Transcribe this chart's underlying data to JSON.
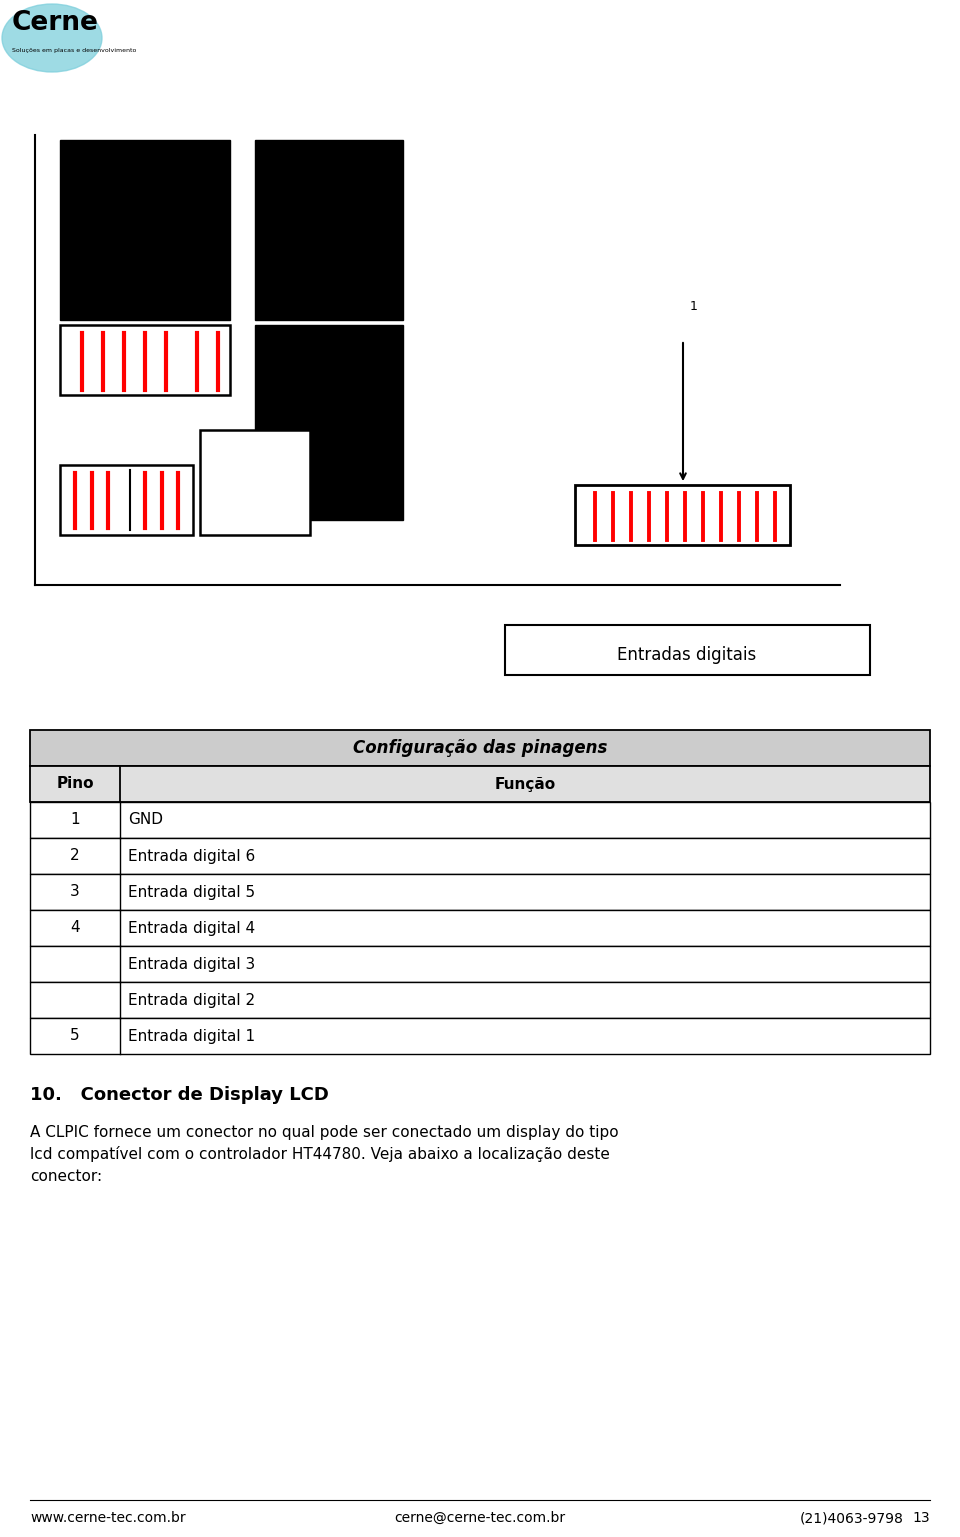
{
  "title": "Configuração das pinagens",
  "table_header": [
    "Pino",
    "Função"
  ],
  "table_rows": [
    [
      "1",
      "GND"
    ],
    [
      "2",
      "Entrada digital 6"
    ],
    [
      "3",
      "Entrada digital 5"
    ],
    [
      "4",
      "Entrada digital 4"
    ],
    [
      "",
      "Entrada digital 3"
    ],
    [
      "",
      "Entrada digital 2"
    ],
    [
      "5",
      "Entrada digital 1"
    ]
  ],
  "entradas_label": "Entradas digitais",
  "section_title": "10.   Conector de Display LCD",
  "body_text1": "A CLPIC fornece um conector no qual pode ser conectado um display do tipo",
  "body_text2": "lcd compatível com o controlador HT44780. Veja abaixo a localização deste",
  "body_text3": "conector:",
  "footer_left": "www.cerne-tec.com.br",
  "footer_mid": "cerne@cerne-tec.com.br",
  "footer_right": "(21)4063-9798",
  "footer_page": "13",
  "bg_color": "#ffffff",
  "black": "#000000",
  "red": "#ff0000",
  "logo_text": "Cerne"
}
